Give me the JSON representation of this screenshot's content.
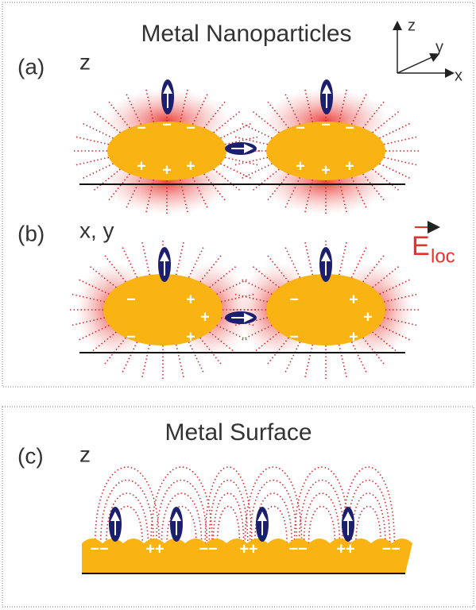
{
  "axes": {
    "z": "z",
    "y": "y",
    "x": "x"
  },
  "panel_a": {
    "title": "Metal Nanoparticles",
    "label": "(a)",
    "polarization": "z",
    "charges": [
      "−",
      "−",
      "−",
      "+",
      "+",
      "+",
      "−",
      "−",
      "−",
      "+",
      "+",
      "+"
    ]
  },
  "panel_b": {
    "label": "(b)",
    "polarization": "x, y",
    "charges": [
      "−",
      "−",
      "+",
      "+",
      "+",
      "−",
      "−",
      "+",
      "+",
      "+"
    ]
  },
  "field": {
    "symbol": "E",
    "subscript": "loc"
  },
  "panel_c": {
    "title": "Metal Surface",
    "label": "(c)",
    "polarization": "z",
    "charges": [
      "−−",
      "++",
      "−−",
      "++",
      "−−",
      "++",
      "−−"
    ]
  }
}
